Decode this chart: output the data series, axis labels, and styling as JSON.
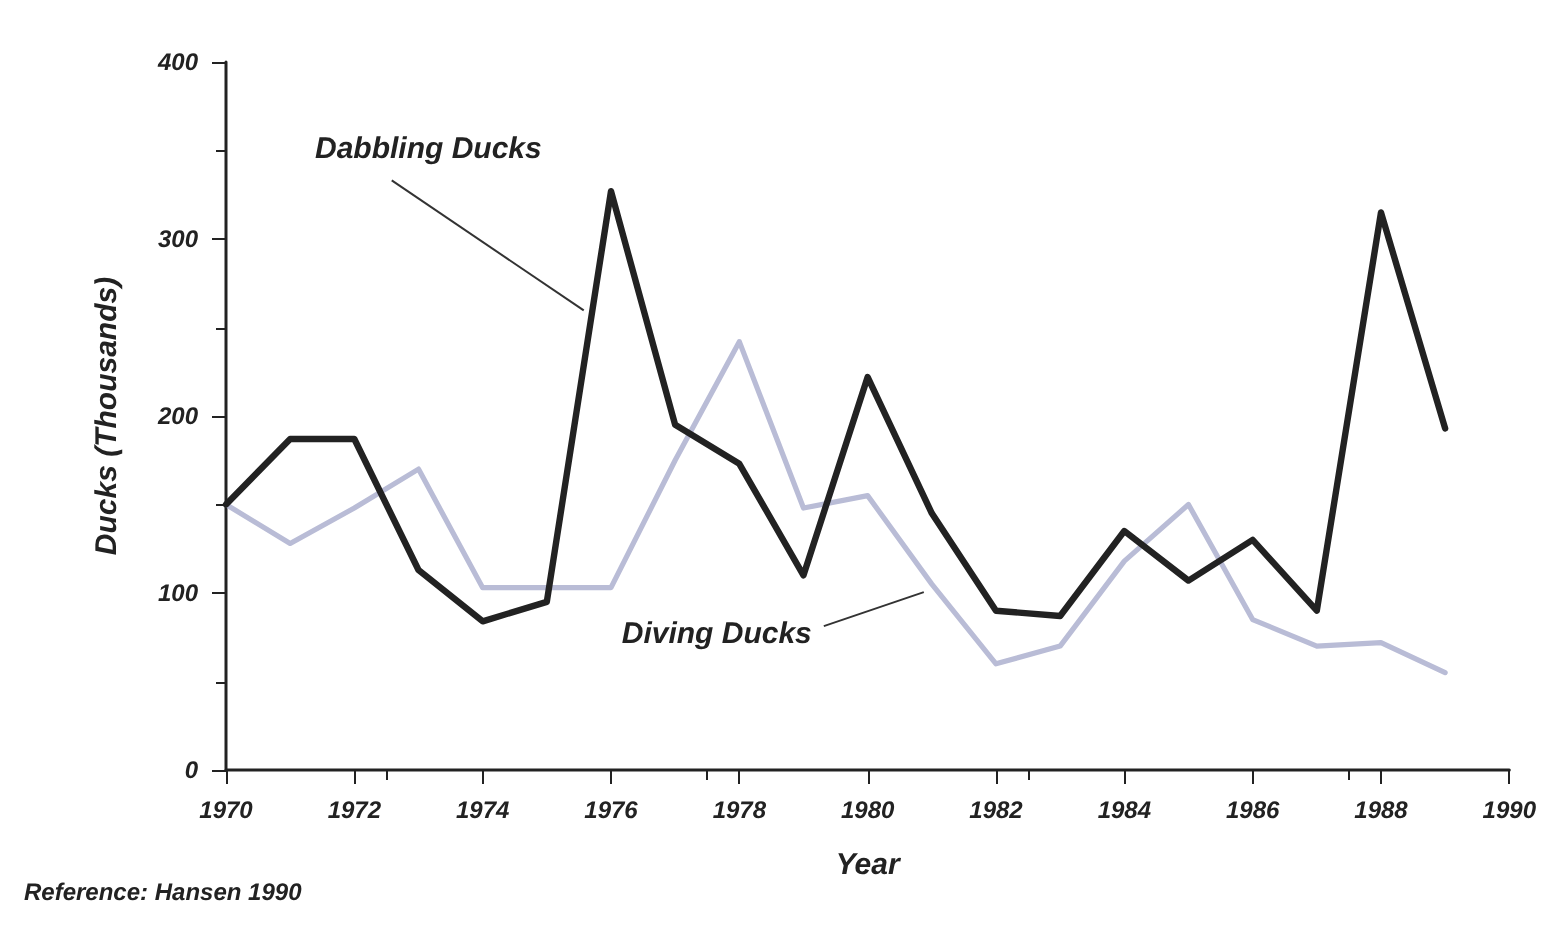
{
  "chart_data": {
    "type": "line",
    "xlabel": "Year",
    "ylabel": "Ducks (Thousands)",
    "x": [
      1970,
      1971,
      1972,
      1973,
      1974,
      1975,
      1976,
      1977,
      1978,
      1979,
      1980,
      1981,
      1982,
      1983,
      1984,
      1985,
      1986,
      1987,
      1988,
      1989
    ],
    "series": [
      {
        "name": "Dabbling Ducks",
        "color": "#222222",
        "values": [
          150,
          187,
          187,
          113,
          84,
          95,
          327,
          195,
          173,
          110,
          222,
          145,
          90,
          87,
          135,
          107,
          130,
          90,
          315,
          193
        ]
      },
      {
        "name": "Diving Ducks",
        "color": "#b9bcd6",
        "values": [
          150,
          128,
          148,
          170,
          103,
          103,
          103,
          175,
          242,
          148,
          155,
          105,
          60,
          70,
          118,
          150,
          85,
          70,
          72,
          55
        ]
      }
    ],
    "xlim": [
      1970,
      1990
    ],
    "xticks": [
      1970,
      1972,
      1974,
      1976,
      1978,
      1980,
      1982,
      1984,
      1986,
      1988,
      1990
    ],
    "ylim": [
      0,
      400
    ],
    "yticks": [
      0,
      100,
      200,
      300,
      400
    ],
    "grid": false,
    "legend": false,
    "marker": "none",
    "line_style": "solid",
    "annotations": [
      "Reference: Hansen 1990"
    ]
  }
}
